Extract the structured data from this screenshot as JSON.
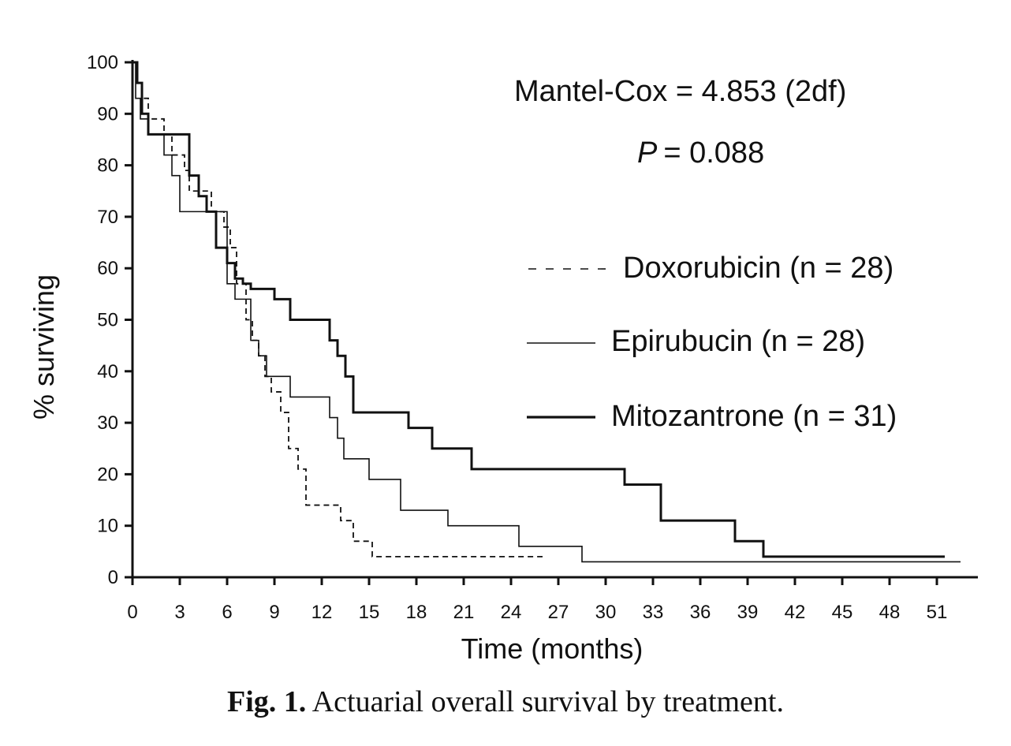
{
  "chart_data": {
    "type": "line",
    "title": "",
    "xlabel": "Time (months)",
    "ylabel": "% surviving",
    "xlim": [
      0,
      53
    ],
    "ylim": [
      0,
      100
    ],
    "x_ticks": [
      0,
      3,
      6,
      9,
      12,
      15,
      18,
      21,
      24,
      27,
      30,
      33,
      36,
      39,
      42,
      45,
      48,
      51
    ],
    "y_ticks": [
      0,
      10,
      20,
      30,
      40,
      50,
      60,
      70,
      80,
      90,
      100
    ],
    "grid": false,
    "legend_position": "right",
    "annotations": [
      "Mantel-Cox = 4.853 (2df)",
      "= 0.088"
    ],
    "annotation_italic_prefix": "P",
    "series": [
      {
        "name": "Doxorubicin (n = 28)",
        "style": "dashed",
        "x": [
          0,
          0.3,
          0.6,
          1.0,
          2.0,
          2.5,
          3.3,
          3.6,
          5.0,
          5.8,
          6.2,
          6.6,
          7.2,
          7.6,
          8.0,
          8.4,
          8.8,
          9.4,
          9.9,
          10.5,
          11.0,
          12.5,
          13.2,
          14.0,
          15.2,
          16.0,
          20.0,
          24.0,
          26.0
        ],
        "y": [
          100,
          96,
          93,
          89,
          86,
          82,
          79,
          75,
          71,
          68,
          64,
          57,
          50,
          46,
          43,
          39,
          36,
          32,
          25,
          21,
          14,
          14,
          11,
          7,
          4,
          4,
          4,
          4,
          4
        ]
      },
      {
        "name": "Epirubucin (n = 28)",
        "style": "thin",
        "x": [
          0,
          0.2,
          0.5,
          1.0,
          2.0,
          2.5,
          3.0,
          4.5,
          6.0,
          6.5,
          7.5,
          8.0,
          8.5,
          10.0,
          12.5,
          13.0,
          13.4,
          15.0,
          17.0,
          20.0,
          24.5,
          28.5,
          31.0,
          40.0,
          48.0,
          52.5
        ],
        "y": [
          100,
          93,
          89,
          86,
          82,
          78,
          71,
          71,
          57,
          54,
          46,
          43,
          39,
          35,
          31,
          27,
          23,
          19,
          13,
          10,
          6,
          3,
          3,
          3,
          3,
          3
        ]
      },
      {
        "name": "Mitozantrone (n = 31)",
        "style": "bold",
        "x": [
          0,
          0.3,
          0.6,
          1.0,
          3.2,
          3.6,
          4.2,
          4.7,
          5.3,
          6.0,
          6.5,
          7.0,
          7.5,
          9.0,
          10.0,
          12.5,
          13.0,
          13.5,
          14.0,
          17.5,
          19.0,
          21.5,
          31.2,
          33.5,
          38.2,
          40.0,
          45.0,
          51.5
        ],
        "y": [
          100,
          96,
          90,
          86,
          86,
          78,
          74,
          71,
          64,
          61,
          58,
          57,
          56,
          54,
          50,
          46,
          43,
          39,
          32,
          29,
          25,
          21,
          18,
          11,
          7,
          4,
          4,
          4
        ]
      }
    ]
  },
  "caption": {
    "label": "Fig. 1.",
    "text": "Actuarial overall survival by treatment."
  }
}
